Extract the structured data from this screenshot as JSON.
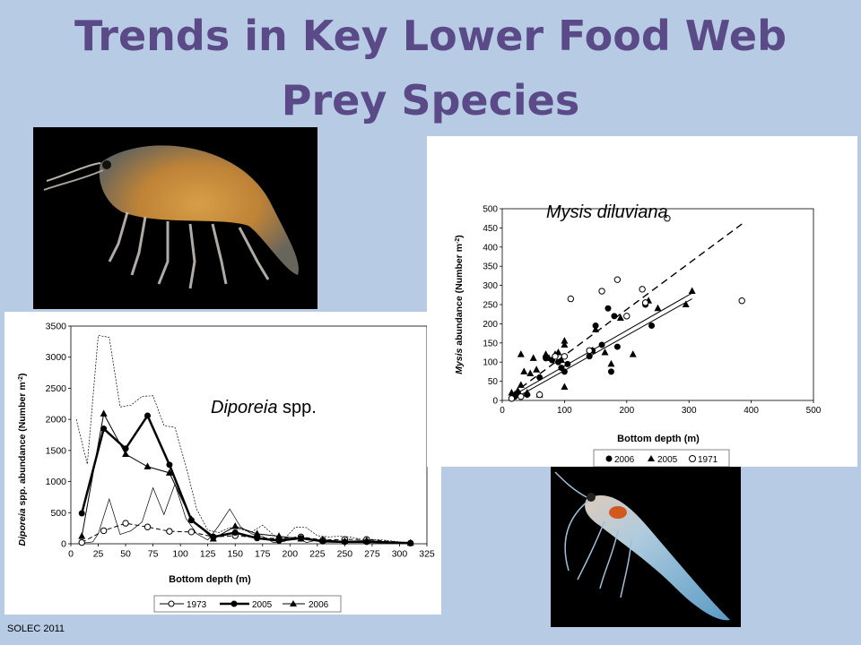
{
  "slide": {
    "title_line1": "Trends in Key Lower Food Web",
    "title_line2": "Prey Species",
    "footer": "SOLEC 2011"
  },
  "chart_data": [
    {
      "type": "line",
      "name": "diporeia",
      "species_label": "Diporeia spp.",
      "species_italic": "Diporeia",
      "species_rest": " spp.",
      "xlabel": "Bottom depth (m)",
      "ylabel_italic": "Diporeia",
      "ylabel_rest": " spp. abundance (Number m",
      "ylabel_sup": "-2",
      "ylabel_end": ")",
      "xlim": [
        0,
        325
      ],
      "ylim": [
        0,
        3500
      ],
      "xticks": [
        0,
        25,
        50,
        75,
        100,
        125,
        150,
        175,
        200,
        225,
        250,
        275,
        300,
        325
      ],
      "yticks": [
        0,
        500,
        1000,
        1500,
        2000,
        2500,
        3000,
        3500
      ],
      "legend": [
        "1973",
        "2005",
        "2006"
      ],
      "series": [
        {
          "name": "1973",
          "marker": "open-circle",
          "dash": "dashed",
          "points": [
            [
              10,
              20
            ],
            [
              30,
              210
            ],
            [
              50,
              330
            ],
            [
              70,
              270
            ],
            [
              90,
              200
            ],
            [
              110,
              190
            ],
            [
              130,
              110
            ],
            [
              150,
              130
            ],
            [
              170,
              100
            ],
            [
              190,
              80
            ],
            [
              210,
              110
            ],
            [
              230,
              60
            ],
            [
              250,
              70
            ],
            [
              270,
              70
            ],
            [
              310,
              10
            ]
          ]
        },
        {
          "name": "2005",
          "marker": "filled-circle",
          "dash": "solid-bold",
          "points": [
            [
              10,
              490
            ],
            [
              30,
              1850
            ],
            [
              50,
              1530
            ],
            [
              70,
              2060
            ],
            [
              90,
              1270
            ],
            [
              110,
              380
            ],
            [
              130,
              110
            ],
            [
              150,
              180
            ],
            [
              170,
              90
            ],
            [
              190,
              50
            ],
            [
              210,
              90
            ],
            [
              230,
              40
            ],
            [
              250,
              30
            ],
            [
              270,
              30
            ],
            [
              310,
              10
            ]
          ]
        },
        {
          "name": "2006",
          "marker": "filled-triangle",
          "dash": "solid",
          "points": [
            [
              10,
              120
            ],
            [
              30,
              2090
            ],
            [
              50,
              1440
            ],
            [
              70,
              1240
            ],
            [
              90,
              1140
            ],
            [
              110,
              390
            ],
            [
              130,
              80
            ],
            [
              150,
              280
            ],
            [
              170,
              160
            ],
            [
              190,
              120
            ],
            [
              210,
              80
            ],
            [
              230,
              60
            ],
            [
              250,
              40
            ],
            [
              270,
              50
            ],
            [
              310,
              10
            ]
          ]
        }
      ],
      "envelopes": [
        {
          "style": "dotted",
          "points": [
            [
              5,
              2000
            ],
            [
              15,
              1280
            ],
            [
              25,
              3350
            ],
            [
              35,
              3320
            ],
            [
              45,
              2200
            ],
            [
              55,
              2230
            ],
            [
              65,
              2370
            ],
            [
              75,
              2380
            ],
            [
              85,
              1900
            ],
            [
              95,
              1870
            ],
            [
              105,
              1250
            ],
            [
              115,
              550
            ],
            [
              125,
              220
            ],
            [
              135,
              180
            ],
            [
              145,
              260
            ],
            [
              155,
              230
            ],
            [
              165,
              190
            ],
            [
              175,
              300
            ],
            [
              185,
              140
            ],
            [
              195,
              80
            ],
            [
              205,
              270
            ],
            [
              215,
              260
            ],
            [
              225,
              130
            ],
            [
              235,
              110
            ],
            [
              245,
              120
            ],
            [
              255,
              110
            ],
            [
              265,
              70
            ],
            [
              275,
              70
            ],
            [
              285,
              60
            ],
            [
              300,
              30
            ],
            [
              312,
              20
            ]
          ]
        },
        {
          "style": "thin",
          "points": [
            [
              10,
              10
            ],
            [
              20,
              30
            ],
            [
              25,
              160
            ],
            [
              35,
              720
            ],
            [
              45,
              150
            ],
            [
              55,
              210
            ],
            [
              65,
              350
            ],
            [
              75,
              900
            ],
            [
              85,
              470
            ],
            [
              95,
              960
            ],
            [
              105,
              410
            ],
            [
              115,
              160
            ],
            [
              125,
              60
            ],
            [
              135,
              290
            ],
            [
              145,
              560
            ],
            [
              155,
              270
            ],
            [
              165,
              160
            ],
            [
              175,
              120
            ],
            [
              185,
              20
            ],
            [
              195,
              40
            ],
            [
              205,
              110
            ],
            [
              215,
              20
            ],
            [
              225,
              60
            ],
            [
              235,
              30
            ],
            [
              245,
              40
            ],
            [
              255,
              30
            ],
            [
              265,
              20
            ],
            [
              275,
              30
            ],
            [
              285,
              20
            ],
            [
              300,
              10
            ],
            [
              312,
              10
            ]
          ]
        }
      ]
    },
    {
      "type": "scatter",
      "name": "mysis",
      "species_label": "Mysis diluviana",
      "xlabel": "Bottom depth (m)",
      "ylabel_italic": "Mysis",
      "ylabel_rest": " abundance (Number m",
      "ylabel_sup": "-2",
      "ylabel_end": ")",
      "xlim": [
        0,
        500
      ],
      "ylim": [
        0,
        500
      ],
      "xticks": [
        0,
        100,
        200,
        300,
        400,
        500
      ],
      "yticks": [
        0,
        50,
        100,
        150,
        200,
        250,
        300,
        350,
        400,
        450,
        500
      ],
      "legend": [
        "2006",
        "2005",
        "1971"
      ],
      "series": [
        {
          "name": "2006",
          "marker": "filled-circle",
          "points": [
            [
              20,
              10
            ],
            [
              25,
              20
            ],
            [
              40,
              15
            ],
            [
              60,
              60
            ],
            [
              70,
              110
            ],
            [
              80,
              105
            ],
            [
              90,
              100
            ],
            [
              95,
              85
            ],
            [
              100,
              75
            ],
            [
              105,
              95
            ],
            [
              140,
              115
            ],
            [
              145,
              130
            ],
            [
              150,
              195
            ],
            [
              160,
              145
            ],
            [
              170,
              240
            ],
            [
              175,
              75
            ],
            [
              180,
              220
            ],
            [
              185,
              140
            ],
            [
              230,
              250
            ],
            [
              240,
              195
            ]
          ]
        },
        {
          "name": "2005",
          "marker": "filled-triangle",
          "points": [
            [
              15,
              20
            ],
            [
              20,
              15
            ],
            [
              25,
              25
            ],
            [
              30,
              40
            ],
            [
              30,
              120
            ],
            [
              35,
              75
            ],
            [
              40,
              20
            ],
            [
              45,
              70
            ],
            [
              50,
              110
            ],
            [
              55,
              80
            ],
            [
              60,
              15
            ],
            [
              70,
              120
            ],
            [
              75,
              110
            ],
            [
              85,
              120
            ],
            [
              90,
              125
            ],
            [
              95,
              105
            ],
            [
              100,
              155
            ],
            [
              100,
              145
            ],
            [
              100,
              35
            ],
            [
              145,
              130
            ],
            [
              150,
              185
            ],
            [
              165,
              125
            ],
            [
              175,
              95
            ],
            [
              190,
              215
            ],
            [
              210,
              120
            ],
            [
              235,
              260
            ],
            [
              250,
              240
            ],
            [
              295,
              250
            ],
            [
              305,
              285
            ]
          ]
        },
        {
          "name": "1971",
          "marker": "open-circle",
          "points": [
            [
              15,
              5
            ],
            [
              30,
              10
            ],
            [
              60,
              15
            ],
            [
              85,
              115
            ],
            [
              100,
              115
            ],
            [
              110,
              265
            ],
            [
              140,
              130
            ],
            [
              160,
              285
            ],
            [
              185,
              315
            ],
            [
              200,
              220
            ],
            [
              225,
              290
            ],
            [
              230,
              255
            ],
            [
              265,
              475
            ],
            [
              385,
              260
            ]
          ]
        }
      ],
      "trendlines": [
        {
          "style": "dashed",
          "from": [
            15,
            15
          ],
          "to": [
            385,
            460
          ]
        },
        {
          "style": "solid",
          "from": [
            25,
            20
          ],
          "to": [
            305,
            280
          ]
        },
        {
          "style": "solid",
          "from": [
            25,
            10
          ],
          "to": [
            305,
            265
          ]
        }
      ]
    }
  ]
}
